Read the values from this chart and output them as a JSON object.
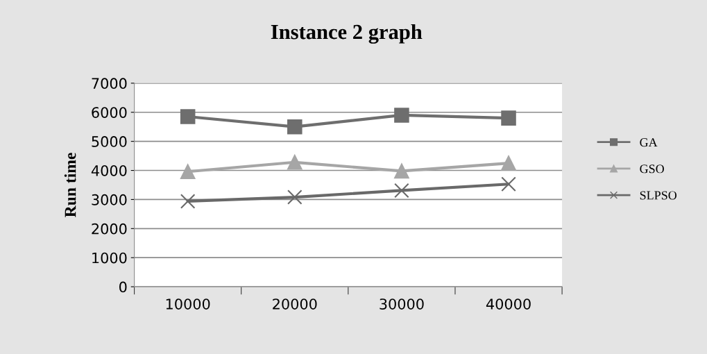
{
  "chart_data": {
    "type": "line",
    "title": "Instance 2 graph",
    "ylabel": "Run time",
    "categories": [
      "10000",
      "20000",
      "30000",
      "40000"
    ],
    "series": [
      {
        "name": "GA",
        "color": "#6e6e6e",
        "marker": "square",
        "values": [
          5850,
          5500,
          5900,
          5800
        ]
      },
      {
        "name": "GSO",
        "color": "#a6a6a6",
        "marker": "triangle",
        "values": [
          3960,
          4280,
          3980,
          4250
        ]
      },
      {
        "name": "SLPSO",
        "color": "#696969",
        "marker": "cross",
        "values": [
          2940,
          3080,
          3310,
          3530
        ]
      }
    ],
    "ylim": [
      0,
      7000
    ],
    "yticks": [
      0,
      1000,
      2000,
      3000,
      4000,
      5000,
      6000,
      7000
    ],
    "grid": "y",
    "legend": "right"
  }
}
